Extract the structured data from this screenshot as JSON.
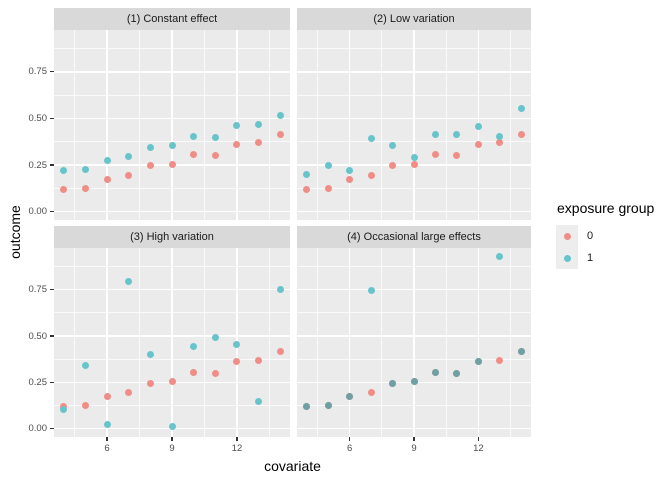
{
  "axes": {
    "x_title": "covariate",
    "y_title": "outcome",
    "x_tick_labels": [
      "6",
      "9",
      "12"
    ],
    "y_tick_labels": [
      "0.00",
      "0.25",
      "0.50",
      "0.75"
    ]
  },
  "legend": {
    "title": "exposure group",
    "items": [
      {
        "label": "0",
        "color": "#EF8D86"
      },
      {
        "label": "1",
        "color": "#67C4CA"
      }
    ]
  },
  "chart_data": {
    "type": "scatter",
    "title": "",
    "xlabel": "covariate",
    "ylabel": "outcome",
    "legend_title": "exposure group",
    "facet_layout": "2x2",
    "grid": "on",
    "legend_position": "right",
    "x": [
      4,
      5,
      6,
      7,
      8,
      9,
      10,
      11,
      12,
      13,
      14
    ],
    "x_ticks": [
      6,
      9,
      12
    ],
    "y_ticks": [
      0,
      0.25,
      0.5,
      0.75
    ],
    "x_minor_gridlines": [
      4.5,
      7.5,
      10.5,
      13.5
    ],
    "y_minor_gridlines": [
      0.125,
      0.375,
      0.625,
      0.875
    ],
    "xlim": [
      3.55,
      14.45
    ],
    "ylim": [
      -0.045,
      0.975
    ],
    "colors": {
      "group0": "#EF8D86",
      "group1": "#67C4CA",
      "overlap": "#6FA0A4",
      "panel_bg": "#EBEBEB",
      "strip_bg": "#D9D9D9",
      "gridline": "#FFFFFF"
    },
    "facets": [
      {
        "label": "(1) Constant effect",
        "series": [
          {
            "name": "0",
            "values": [
              0.12,
              0.125,
              0.175,
              0.195,
              0.245,
              0.255,
              0.305,
              0.3,
              0.36,
              0.37,
              0.415
            ]
          },
          {
            "name": "1",
            "values": [
              0.22,
              0.225,
              0.275,
              0.295,
              0.345,
              0.355,
              0.405,
              0.4,
              0.46,
              0.47,
              0.515
            ]
          }
        ]
      },
      {
        "label": "(2) Low variation",
        "series": [
          {
            "name": "0",
            "values": [
              0.12,
              0.125,
              0.175,
              0.195,
              0.245,
              0.255,
              0.305,
              0.3,
              0.36,
              0.37,
              0.415
            ]
          },
          {
            "name": "1",
            "values": [
              0.2,
              0.245,
              0.22,
              0.39,
              0.355,
              0.29,
              0.415,
              0.415,
              0.455,
              0.405,
              0.555
            ]
          }
        ]
      },
      {
        "label": "(3) High variation",
        "series": [
          {
            "name": "0",
            "values": [
              0.12,
              0.125,
              0.175,
              0.195,
              0.245,
              0.255,
              0.305,
              0.3,
              0.36,
              0.37,
              0.415
            ]
          },
          {
            "name": "1",
            "values": [
              0.105,
              0.34,
              0.025,
              0.795,
              0.4,
              0.01,
              0.445,
              0.49,
              0.455,
              0.145,
              0.75
            ]
          }
        ]
      },
      {
        "label": "(4) Occasional large effects",
        "series": [
          {
            "name": "0",
            "values": [
              0.12,
              0.125,
              0.175,
              0.195,
              0.245,
              0.255,
              0.305,
              0.3,
              0.36,
              0.37,
              0.415
            ]
          },
          {
            "name": "1",
            "values": [
              0.12,
              0.125,
              0.175,
              0.745,
              0.245,
              0.255,
              0.305,
              0.3,
              0.36,
              0.93,
              0.415
            ]
          }
        ]
      }
    ]
  }
}
